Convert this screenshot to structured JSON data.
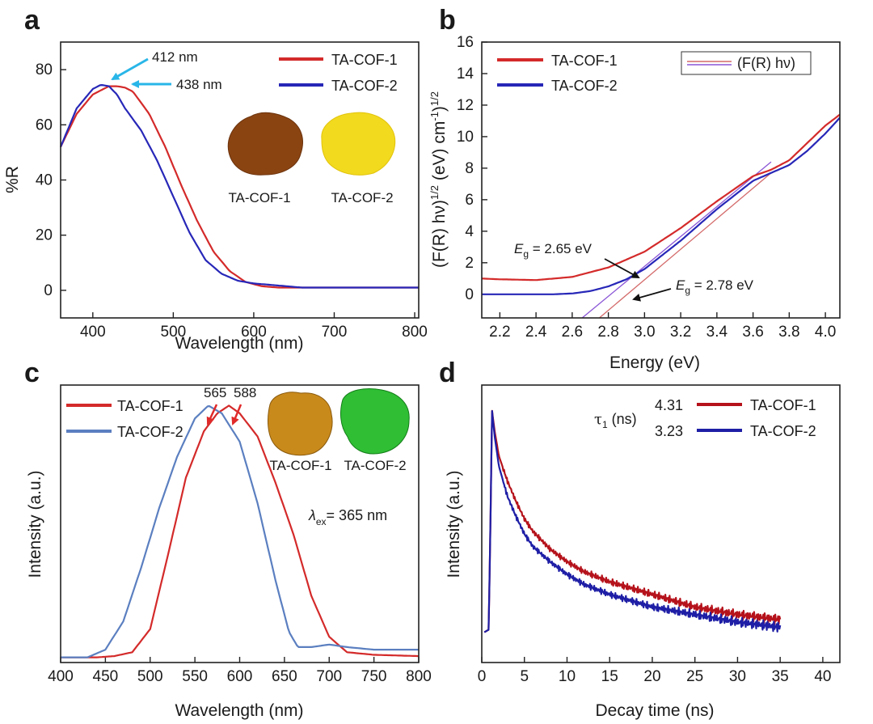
{
  "colors": {
    "red": "#d42a2a",
    "blue": "#2727b8",
    "blue_c": "#5b7fc0",
    "dark_red": "#b5121b",
    "dark_blue": "#1e1ea6",
    "arrow_cyan": "#29b6e8",
    "arrow_red": "#e02a2a",
    "fit_red": "#d46a6a",
    "fit_purple": "#8a55d6"
  },
  "chart_data": [
    {
      "panel": "a",
      "type": "line",
      "xlabel": "Wavelength (nm)",
      "ylabel": "%R",
      "xlim": [
        360,
        805
      ],
      "ylim": [
        -10,
        90
      ],
      "xticks": [
        "400",
        "500",
        "600",
        "700",
        "800"
      ],
      "yticks": [
        "0",
        "20",
        "40",
        "60",
        "80"
      ],
      "legend": "top-right",
      "series": [
        {
          "name": "TA-COF-1",
          "color": "red",
          "x": [
            360,
            380,
            400,
            420,
            430,
            440,
            450,
            470,
            490,
            510,
            530,
            550,
            570,
            590,
            610,
            630,
            650,
            670,
            700,
            750,
            805
          ],
          "y": [
            52,
            64,
            71,
            74,
            74,
            73.5,
            72,
            64,
            52,
            38,
            25,
            14,
            7,
            3,
            1.5,
            1,
            1,
            1,
            1,
            1,
            1
          ]
        },
        {
          "name": "TA-COF-2",
          "color": "blue",
          "x": [
            360,
            380,
            400,
            410,
            420,
            430,
            440,
            460,
            480,
            500,
            520,
            540,
            560,
            580,
            600,
            620,
            640,
            660,
            680,
            720,
            805
          ],
          "y": [
            52,
            66,
            73,
            74.5,
            74,
            71,
            66,
            58,
            47,
            34,
            21,
            11,
            6,
            3.5,
            2.5,
            2,
            1.5,
            1,
            1,
            1,
            1
          ]
        }
      ],
      "annotations": [
        "412 nm",
        "438 nm"
      ],
      "inset_labels": [
        "TA-COF-1",
        "TA-COF-2"
      ],
      "inset_colors": [
        "#8a4412",
        "#f2da1e"
      ]
    },
    {
      "panel": "b",
      "type": "line",
      "xlabel": "Energy (eV)",
      "ylabel_main": "(F(R) hν)",
      "ylabel_sup1": "1/2",
      "ylabel_unit": " (eV) cm",
      "ylabel_sup2": "-1",
      "ylabel_close": ")",
      "ylabel_sup3": "1/2",
      "xlim": [
        2.1,
        4.08
      ],
      "ylim": [
        -1.5,
        16
      ],
      "xticks": [
        "2.2",
        "2.4",
        "2.6",
        "2.8",
        "3.0",
        "3.2",
        "3.4",
        "3.6",
        "3.8",
        "4.0"
      ],
      "yticks": [
        "0",
        "2",
        "4",
        "6",
        "8",
        "10",
        "12",
        "14",
        "16"
      ],
      "legend": "top-left",
      "legend_box": "(F(R) hν)",
      "series": [
        {
          "name": "TA-COF-1",
          "color": "red",
          "x": [
            2.1,
            2.2,
            2.4,
            2.6,
            2.8,
            3.0,
            3.2,
            3.4,
            3.6,
            3.7,
            3.8,
            3.9,
            4.0,
            4.08
          ],
          "y": [
            1.0,
            0.95,
            0.9,
            1.1,
            1.7,
            2.7,
            4.2,
            5.9,
            7.5,
            7.9,
            8.5,
            9.6,
            10.7,
            11.4
          ]
        },
        {
          "name": "TA-COF-2",
          "color": "blue",
          "x": [
            2.1,
            2.3,
            2.5,
            2.6,
            2.7,
            2.8,
            2.9,
            3.0,
            3.2,
            3.4,
            3.6,
            3.7,
            3.8,
            3.9,
            4.0,
            4.08
          ],
          "y": [
            0.0,
            0.0,
            0.0,
            0.05,
            0.2,
            0.5,
            0.95,
            1.6,
            3.4,
            5.4,
            7.2,
            7.7,
            8.2,
            9.1,
            10.2,
            11.2
          ]
        }
      ],
      "fits": [
        {
          "color": "fit_red",
          "x": [
            2.75,
            3.7
          ],
          "y": [
            -1.5,
            7.7
          ]
        },
        {
          "color": "fit_purple",
          "x": [
            2.655,
            3.7
          ],
          "y": [
            -1.5,
            8.4
          ]
        }
      ],
      "eg1_sym": "E",
      "eg1_sub": "g",
      "eg1_val": " = 2.65 eV",
      "eg2_sym": "E",
      "eg2_sub": "g",
      "eg2_val": " = 2.78 eV"
    },
    {
      "panel": "c",
      "type": "line",
      "xlabel": "Wavelength (nm)",
      "ylabel": "Intensity (a.u.)",
      "xlim": [
        400,
        800
      ],
      "ylim": [
        0,
        1.08
      ],
      "xticks": [
        "400",
        "450",
        "500",
        "550",
        "600",
        "650",
        "700",
        "750",
        "800"
      ],
      "legend": "top-left",
      "series": [
        {
          "name": "TA-COF-1",
          "color": "red",
          "x": [
            400,
            440,
            460,
            480,
            500,
            520,
            540,
            560,
            575,
            588,
            600,
            620,
            640,
            660,
            680,
            700,
            720,
            750,
            800
          ],
          "y": [
            0.02,
            0.02,
            0.025,
            0.04,
            0.13,
            0.42,
            0.72,
            0.9,
            0.97,
            1.0,
            0.97,
            0.88,
            0.7,
            0.5,
            0.26,
            0.1,
            0.04,
            0.03,
            0.025
          ]
        },
        {
          "name": "TA-COF-2",
          "color": "blue_c",
          "x": [
            400,
            430,
            450,
            470,
            490,
            510,
            530,
            550,
            565,
            580,
            600,
            620,
            640,
            655,
            665,
            680,
            700,
            720,
            750,
            800
          ],
          "y": [
            0.02,
            0.02,
            0.05,
            0.16,
            0.37,
            0.6,
            0.8,
            0.95,
            1.0,
            0.97,
            0.86,
            0.62,
            0.32,
            0.12,
            0.06,
            0.06,
            0.07,
            0.06,
            0.05,
            0.05
          ]
        }
      ],
      "peak1": "565",
      "peak2": "588",
      "lambda_sym": "λ",
      "lambda_sub": "ex",
      "lambda_val": "= 365 nm",
      "inset_labels": [
        "TA-COF-1",
        "TA-COF-2"
      ],
      "inset_colors": [
        "#c98a1c",
        "#2fbe34"
      ]
    },
    {
      "panel": "d",
      "type": "line",
      "xlabel": "Decay time (ns)",
      "ylabel": "Intensity (a.u.)",
      "xlim": [
        0,
        42
      ],
      "ylim": [
        0,
        1.1
      ],
      "xticks": [
        "0",
        "5",
        "10",
        "15",
        "20",
        "25",
        "30",
        "35",
        "40"
      ],
      "legend": "top-right",
      "tau_sym": "τ",
      "tau_sub": "1",
      "tau_unit": " (ns)",
      "series": [
        {
          "name": "TA-COF-1",
          "value_label": "4.31",
          "color": "dark_red",
          "x": [
            0.3,
            0.8,
            1.0,
            1.2,
            1.5,
            2,
            3,
            4,
            5,
            6,
            8,
            10,
            12,
            15,
            18,
            20,
            25,
            30,
            35
          ],
          "y": [
            0.12,
            0.13,
            0.5,
            1.0,
            0.92,
            0.82,
            0.72,
            0.64,
            0.57,
            0.52,
            0.45,
            0.4,
            0.36,
            0.32,
            0.29,
            0.27,
            0.22,
            0.19,
            0.17
          ]
        },
        {
          "name": "TA-COF-2",
          "value_label": "3.23",
          "color": "dark_blue",
          "x": [
            0.3,
            0.8,
            1.0,
            1.2,
            1.5,
            2,
            3,
            4,
            5,
            6,
            8,
            10,
            12,
            15,
            18,
            20,
            25,
            30,
            35
          ],
          "y": [
            0.12,
            0.13,
            0.5,
            1.0,
            0.9,
            0.78,
            0.66,
            0.58,
            0.51,
            0.46,
            0.4,
            0.35,
            0.31,
            0.27,
            0.24,
            0.22,
            0.19,
            0.16,
            0.14
          ]
        }
      ]
    }
  ]
}
